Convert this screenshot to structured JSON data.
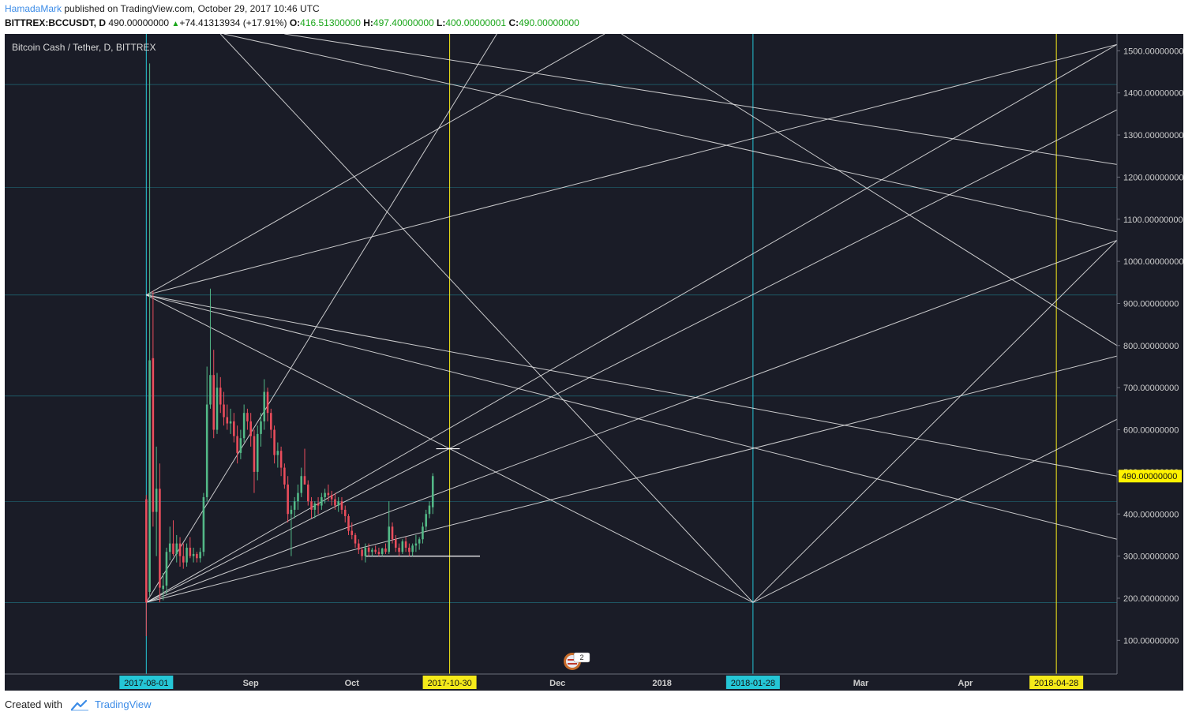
{
  "header": {
    "author": "HamadaMark",
    "published_text": "published on TradingView.com, October 29, 2017 10:46 UTC",
    "symbol": "BITTREX:BCCUSDT, D",
    "last": "490.00000000",
    "change": "+74.41313934 (+17.91%)",
    "o_label": "O:",
    "o_value": "416.51300000",
    "h_label": "H:",
    "h_value": "497.40000000",
    "l_label": "L:",
    "l_value": "400.00000001",
    "c_label": "C:",
    "c_value": "490.00000000"
  },
  "footer": {
    "created_with": "Created with",
    "brand": "TradingView"
  },
  "colors": {
    "background": "#1a1c27",
    "up": "#53b987",
    "down": "#eb4d5c",
    "grid_lines": "#e8e8e8",
    "cyan": "#25c6d6",
    "yellow": "#f5ea1a",
    "price_tag": "#fff200"
  },
  "chart_data": {
    "type": "candlestick",
    "title": "Bitcoin Cash / Tether, D, BITTREX",
    "y_axis": {
      "ticks": [
        100,
        200,
        300,
        400,
        500,
        600,
        700,
        800,
        900,
        1000,
        1100,
        1200,
        1300,
        1400,
        1500
      ],
      "tick_labels": [
        "100.00000000",
        "200.00000000",
        "300.00000000",
        "400.00000000",
        "500.00000000",
        "600.00000000",
        "700.00000000",
        "800.00000000",
        "900.00000000",
        "1000.00000000",
        "1100.00000000",
        "1200.00000000",
        "1300.00000000",
        "1400.00000000",
        "1500.00000000"
      ],
      "ylim": [
        20,
        1540
      ]
    },
    "x_axis": {
      "ticks": [
        {
          "date": "2017-08-01",
          "label": "2017-08-01",
          "highlight": "cyan"
        },
        {
          "date": "2017-09-01",
          "label": "Sep"
        },
        {
          "date": "2017-10-01",
          "label": "Oct"
        },
        {
          "date": "2017-10-30",
          "label": "2017-10-30",
          "highlight": "yellow"
        },
        {
          "date": "2017-12-01",
          "label": "Dec"
        },
        {
          "date": "2018-01-01",
          "label": "2018"
        },
        {
          "date": "2018-01-28",
          "label": "2018-01-28",
          "highlight": "cyan"
        },
        {
          "date": "2018-03-01",
          "label": "Mar"
        },
        {
          "date": "2018-04-01",
          "label": "Apr"
        },
        {
          "date": "2018-04-28",
          "label": "2018-04-28",
          "highlight": "yellow"
        }
      ],
      "xlim": [
        "2017-06-20",
        "2018-05-16"
      ]
    },
    "last_price": 490,
    "last_price_label": "490.00000000",
    "candles": [
      {
        "date": "2017-08-01",
        "o": 435,
        "h": 445,
        "l": 110,
        "c": 190
      },
      {
        "date": "2017-08-02",
        "o": 215,
        "h": 1470,
        "l": 205,
        "c": 765
      },
      {
        "date": "2017-08-03",
        "o": 770,
        "h": 930,
        "l": 370,
        "c": 405
      },
      {
        "date": "2017-08-04",
        "o": 405,
        "h": 560,
        "l": 300,
        "c": 460
      },
      {
        "date": "2017-08-05",
        "o": 460,
        "h": 520,
        "l": 190,
        "c": 225
      },
      {
        "date": "2017-08-06",
        "o": 222,
        "h": 260,
        "l": 195,
        "c": 230
      },
      {
        "date": "2017-08-07",
        "o": 230,
        "h": 320,
        "l": 210,
        "c": 310
      },
      {
        "date": "2017-08-08",
        "o": 310,
        "h": 370,
        "l": 290,
        "c": 330
      },
      {
        "date": "2017-08-09",
        "o": 330,
        "h": 385,
        "l": 300,
        "c": 305
      },
      {
        "date": "2017-08-10",
        "o": 305,
        "h": 350,
        "l": 285,
        "c": 330
      },
      {
        "date": "2017-08-11",
        "o": 330,
        "h": 345,
        "l": 275,
        "c": 300
      },
      {
        "date": "2017-08-12",
        "o": 300,
        "h": 330,
        "l": 270,
        "c": 285
      },
      {
        "date": "2017-08-13",
        "o": 285,
        "h": 330,
        "l": 275,
        "c": 320
      },
      {
        "date": "2017-08-14",
        "o": 320,
        "h": 345,
        "l": 295,
        "c": 300
      },
      {
        "date": "2017-08-15",
        "o": 300,
        "h": 320,
        "l": 285,
        "c": 305
      },
      {
        "date": "2017-08-16",
        "o": 305,
        "h": 310,
        "l": 285,
        "c": 295
      },
      {
        "date": "2017-08-17",
        "o": 295,
        "h": 320,
        "l": 285,
        "c": 310
      },
      {
        "date": "2017-08-18",
        "o": 310,
        "h": 450,
        "l": 300,
        "c": 440
      },
      {
        "date": "2017-08-19",
        "o": 440,
        "h": 750,
        "l": 430,
        "c": 660
      },
      {
        "date": "2017-08-20",
        "o": 660,
        "h": 935,
        "l": 650,
        "c": 730
      },
      {
        "date": "2017-08-21",
        "o": 730,
        "h": 790,
        "l": 580,
        "c": 600
      },
      {
        "date": "2017-08-22",
        "o": 600,
        "h": 735,
        "l": 590,
        "c": 700
      },
      {
        "date": "2017-08-23",
        "o": 700,
        "h": 725,
        "l": 640,
        "c": 660
      },
      {
        "date": "2017-08-24",
        "o": 660,
        "h": 690,
        "l": 610,
        "c": 630
      },
      {
        "date": "2017-08-25",
        "o": 630,
        "h": 660,
        "l": 600,
        "c": 615
      },
      {
        "date": "2017-08-26",
        "o": 615,
        "h": 650,
        "l": 590,
        "c": 620
      },
      {
        "date": "2017-08-27",
        "o": 620,
        "h": 640,
        "l": 570,
        "c": 585
      },
      {
        "date": "2017-08-28",
        "o": 585,
        "h": 610,
        "l": 520,
        "c": 545
      },
      {
        "date": "2017-08-29",
        "o": 545,
        "h": 600,
        "l": 530,
        "c": 580
      },
      {
        "date": "2017-08-30",
        "o": 580,
        "h": 660,
        "l": 570,
        "c": 640
      },
      {
        "date": "2017-08-31",
        "o": 640,
        "h": 650,
        "l": 600,
        "c": 620
      },
      {
        "date": "2017-09-01",
        "o": 620,
        "h": 640,
        "l": 560,
        "c": 585
      },
      {
        "date": "2017-09-02",
        "o": 585,
        "h": 600,
        "l": 450,
        "c": 500
      },
      {
        "date": "2017-09-03",
        "o": 500,
        "h": 610,
        "l": 480,
        "c": 590
      },
      {
        "date": "2017-09-04",
        "o": 590,
        "h": 640,
        "l": 560,
        "c": 620
      },
      {
        "date": "2017-09-05",
        "o": 620,
        "h": 720,
        "l": 600,
        "c": 690
      },
      {
        "date": "2017-09-06",
        "o": 690,
        "h": 700,
        "l": 620,
        "c": 640
      },
      {
        "date": "2017-09-07",
        "o": 640,
        "h": 650,
        "l": 580,
        "c": 600
      },
      {
        "date": "2017-09-08",
        "o": 600,
        "h": 610,
        "l": 520,
        "c": 540
      },
      {
        "date": "2017-09-09",
        "o": 540,
        "h": 570,
        "l": 510,
        "c": 550
      },
      {
        "date": "2017-09-10",
        "o": 550,
        "h": 560,
        "l": 490,
        "c": 510
      },
      {
        "date": "2017-09-11",
        "o": 510,
        "h": 520,
        "l": 460,
        "c": 470
      },
      {
        "date": "2017-09-12",
        "o": 470,
        "h": 490,
        "l": 380,
        "c": 400
      },
      {
        "date": "2017-09-13",
        "o": 400,
        "h": 420,
        "l": 300,
        "c": 410
      },
      {
        "date": "2017-09-14",
        "o": 410,
        "h": 440,
        "l": 390,
        "c": 430
      },
      {
        "date": "2017-09-15",
        "o": 430,
        "h": 470,
        "l": 410,
        "c": 450
      },
      {
        "date": "2017-09-16",
        "o": 450,
        "h": 510,
        "l": 440,
        "c": 490
      },
      {
        "date": "2017-09-17",
        "o": 490,
        "h": 555,
        "l": 470,
        "c": 470
      },
      {
        "date": "2017-09-18",
        "o": 470,
        "h": 480,
        "l": 420,
        "c": 430
      },
      {
        "date": "2017-09-19",
        "o": 430,
        "h": 440,
        "l": 390,
        "c": 410
      },
      {
        "date": "2017-09-20",
        "o": 410,
        "h": 430,
        "l": 390,
        "c": 425
      },
      {
        "date": "2017-09-21",
        "o": 425,
        "h": 440,
        "l": 400,
        "c": 420
      },
      {
        "date": "2017-09-22",
        "o": 420,
        "h": 450,
        "l": 410,
        "c": 440
      },
      {
        "date": "2017-09-23",
        "o": 440,
        "h": 460,
        "l": 425,
        "c": 450
      },
      {
        "date": "2017-09-24",
        "o": 450,
        "h": 470,
        "l": 430,
        "c": 445
      },
      {
        "date": "2017-09-25",
        "o": 445,
        "h": 455,
        "l": 420,
        "c": 435
      },
      {
        "date": "2017-09-26",
        "o": 435,
        "h": 450,
        "l": 410,
        "c": 420
      },
      {
        "date": "2017-09-27",
        "o": 420,
        "h": 440,
        "l": 405,
        "c": 430
      },
      {
        "date": "2017-09-28",
        "o": 430,
        "h": 440,
        "l": 400,
        "c": 410
      },
      {
        "date": "2017-09-29",
        "o": 410,
        "h": 420,
        "l": 380,
        "c": 395
      },
      {
        "date": "2017-09-30",
        "o": 395,
        "h": 400,
        "l": 350,
        "c": 360
      },
      {
        "date": "2017-10-01",
        "o": 360,
        "h": 380,
        "l": 340,
        "c": 350
      },
      {
        "date": "2017-10-02",
        "o": 350,
        "h": 355,
        "l": 320,
        "c": 330
      },
      {
        "date": "2017-10-03",
        "o": 330,
        "h": 340,
        "l": 305,
        "c": 315
      },
      {
        "date": "2017-10-04",
        "o": 315,
        "h": 320,
        "l": 290,
        "c": 300
      },
      {
        "date": "2017-10-05",
        "o": 300,
        "h": 330,
        "l": 285,
        "c": 320
      },
      {
        "date": "2017-10-06",
        "o": 320,
        "h": 330,
        "l": 300,
        "c": 310
      },
      {
        "date": "2017-10-07",
        "o": 310,
        "h": 320,
        "l": 300,
        "c": 315
      },
      {
        "date": "2017-10-08",
        "o": 315,
        "h": 325,
        "l": 305,
        "c": 310
      },
      {
        "date": "2017-10-09",
        "o": 310,
        "h": 320,
        "l": 300,
        "c": 305
      },
      {
        "date": "2017-10-10",
        "o": 305,
        "h": 320,
        "l": 300,
        "c": 318
      },
      {
        "date": "2017-10-11",
        "o": 318,
        "h": 330,
        "l": 305,
        "c": 310
      },
      {
        "date": "2017-10-12",
        "o": 310,
        "h": 430,
        "l": 305,
        "c": 370
      },
      {
        "date": "2017-10-13",
        "o": 370,
        "h": 380,
        "l": 330,
        "c": 340
      },
      {
        "date": "2017-10-14",
        "o": 340,
        "h": 350,
        "l": 310,
        "c": 320
      },
      {
        "date": "2017-10-15",
        "o": 320,
        "h": 330,
        "l": 300,
        "c": 310
      },
      {
        "date": "2017-10-16",
        "o": 310,
        "h": 340,
        "l": 305,
        "c": 335
      },
      {
        "date": "2017-10-17",
        "o": 335,
        "h": 345,
        "l": 310,
        "c": 320
      },
      {
        "date": "2017-10-18",
        "o": 320,
        "h": 330,
        "l": 300,
        "c": 310
      },
      {
        "date": "2017-10-19",
        "o": 310,
        "h": 330,
        "l": 300,
        "c": 325
      },
      {
        "date": "2017-10-20",
        "o": 325,
        "h": 350,
        "l": 310,
        "c": 330
      },
      {
        "date": "2017-10-21",
        "o": 330,
        "h": 345,
        "l": 315,
        "c": 340
      },
      {
        "date": "2017-10-22",
        "o": 340,
        "h": 380,
        "l": 330,
        "c": 370
      },
      {
        "date": "2017-10-23",
        "o": 370,
        "h": 410,
        "l": 360,
        "c": 400
      },
      {
        "date": "2017-10-24",
        "o": 400,
        "h": 430,
        "l": 390,
        "c": 420
      },
      {
        "date": "2017-10-25",
        "o": 416,
        "h": 497,
        "l": 400,
        "c": 490
      }
    ],
    "drawings": {
      "vertical_lines": [
        {
          "date": "2017-08-01",
          "color": "cyan"
        },
        {
          "date": "2017-10-30",
          "color": "yellow"
        },
        {
          "date": "2018-01-28",
          "color": "cyan"
        },
        {
          "date": "2018-04-28",
          "color": "yellow"
        }
      ],
      "horizontal_lines": [
        1420,
        1175,
        920,
        680,
        430,
        190
      ],
      "short_segments": [
        {
          "from": [
            "2017-10-26",
            555
          ],
          "to": [
            "2017-11-02",
            555
          ]
        },
        {
          "from": [
            "2017-10-05",
            300
          ],
          "to": [
            "2017-11-08",
            300
          ]
        }
      ],
      "rays": [
        {
          "from": [
            "2017-08-01",
            190
          ],
          "to": [
            "2017-11-13",
            1540
          ]
        },
        {
          "from": [
            "2017-08-01",
            190
          ],
          "to": [
            "2018-05-16",
            1515
          ]
        },
        {
          "from": [
            "2017-08-01",
            190
          ],
          "to": [
            "2018-05-16",
            1360
          ]
        },
        {
          "from": [
            "2017-08-01",
            190
          ],
          "to": [
            "2018-05-16",
            1050
          ]
        },
        {
          "from": [
            "2017-08-01",
            190
          ],
          "to": [
            "2018-05-16",
            775
          ]
        },
        {
          "from": [
            "2017-08-01",
            920
          ],
          "to": [
            "2018-05-16",
            1515
          ]
        },
        {
          "from": [
            "2017-08-01",
            920
          ],
          "to": [
            "2018-01-28",
            190
          ]
        },
        {
          "from": [
            "2017-08-01",
            920
          ],
          "to": [
            "2018-05-16",
            340
          ]
        },
        {
          "from": [
            "2017-08-01",
            920
          ],
          "to": [
            "2018-05-16",
            490
          ]
        },
        {
          "from": [
            "2017-08-01",
            920
          ],
          "to": [
            "2017-12-15",
            1540
          ]
        },
        {
          "from": [
            "2017-08-23",
            1540
          ],
          "to": [
            "2018-01-28",
            190
          ]
        },
        {
          "from": [
            "2017-08-24",
            1540
          ],
          "to": [
            "2018-05-16",
            1070
          ]
        },
        {
          "from": [
            "2017-09-11",
            1540
          ],
          "to": [
            "2018-05-16",
            1230
          ]
        },
        {
          "from": [
            "2017-12-20",
            1540
          ],
          "to": [
            "2018-05-16",
            800
          ]
        },
        {
          "from": [
            "2018-01-28",
            190
          ],
          "to": [
            "2018-05-16",
            625
          ]
        },
        {
          "from": [
            "2018-01-28",
            190
          ],
          "to": [
            "2018-05-16",
            1050
          ]
        }
      ]
    }
  }
}
